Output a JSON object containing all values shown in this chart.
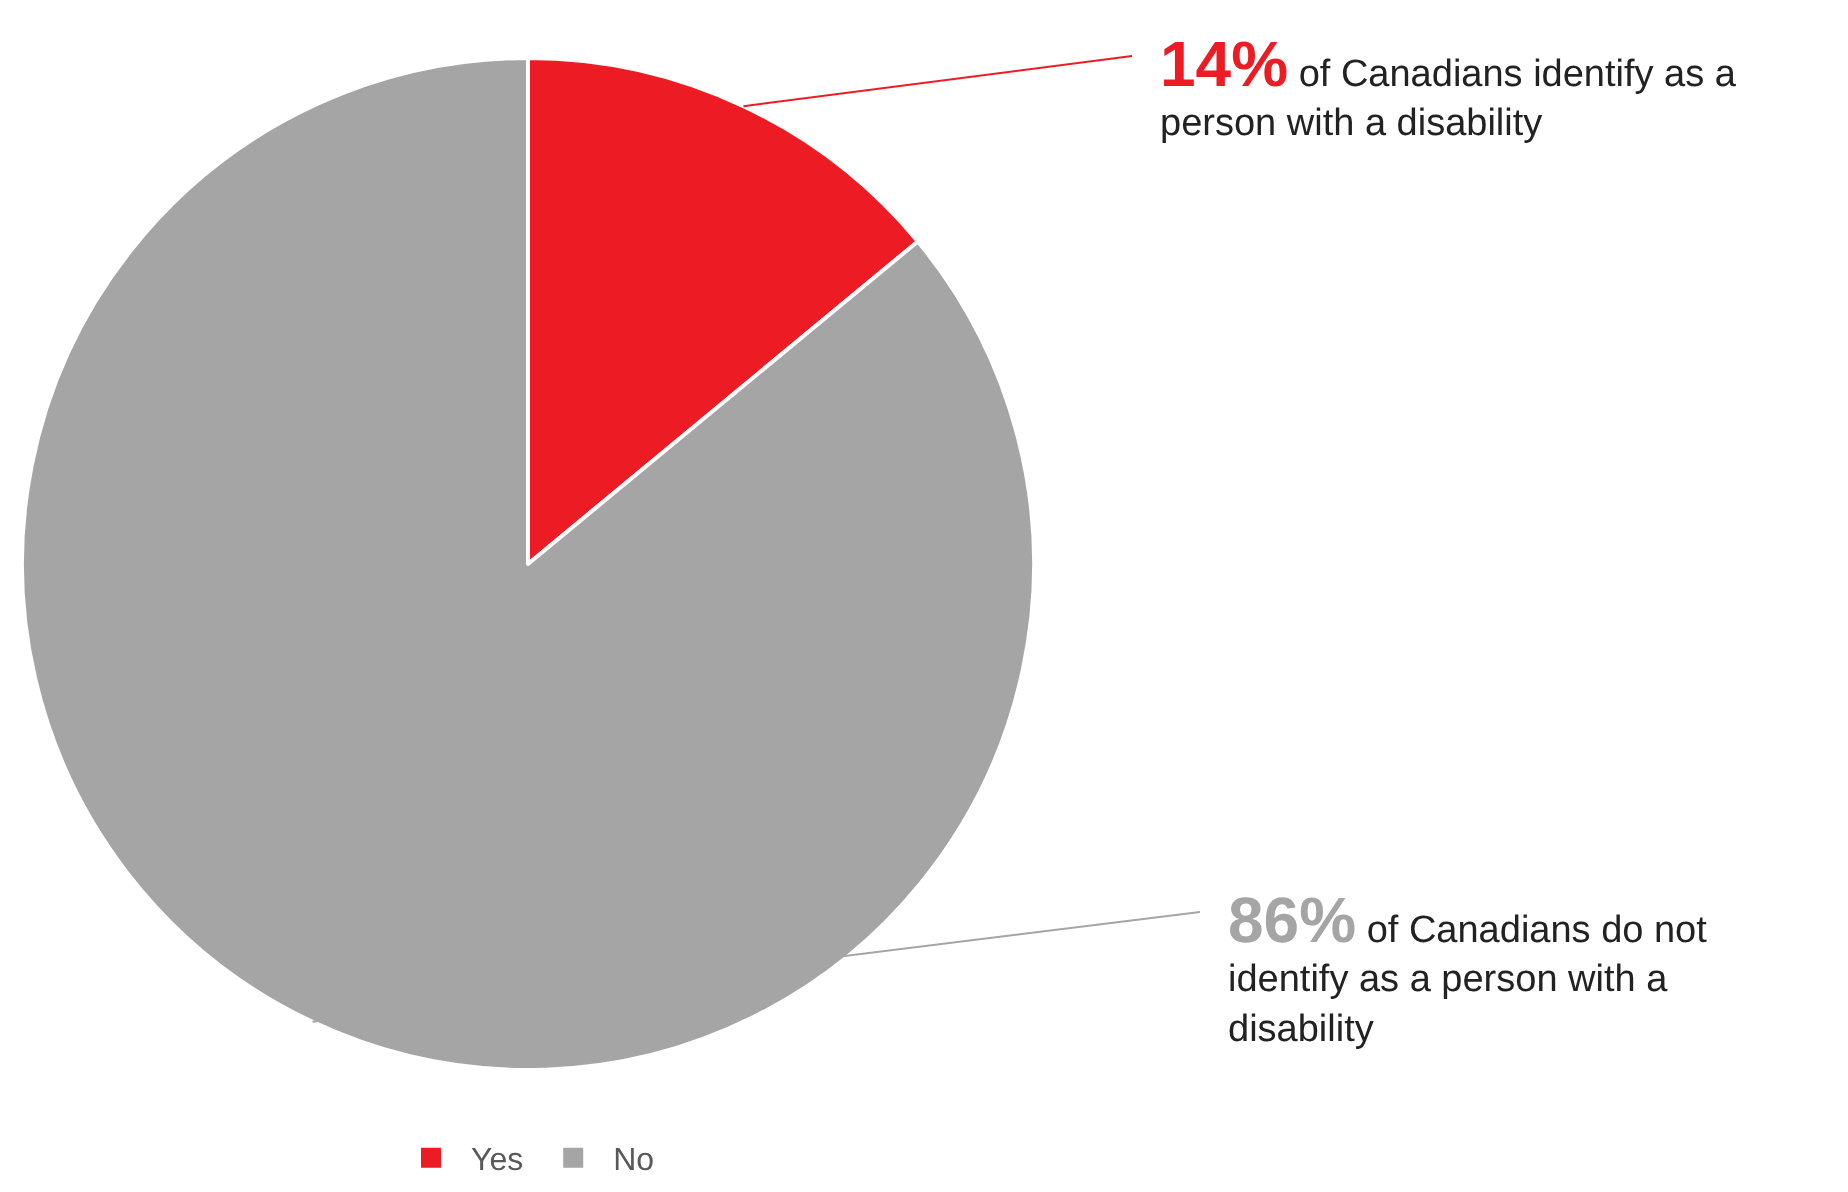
{
  "chart_data": {
    "type": "pie",
    "categories": [
      "Yes",
      "No"
    ],
    "values": [
      14,
      86
    ],
    "colors": [
      "#ed1c24",
      "#a5a5a5"
    ],
    "value_labels": [
      "14% of Canadians identify as a person with a disability",
      "86% of Canadians do not identify as a person with a disability"
    ],
    "legend": "bottom"
  }
}
